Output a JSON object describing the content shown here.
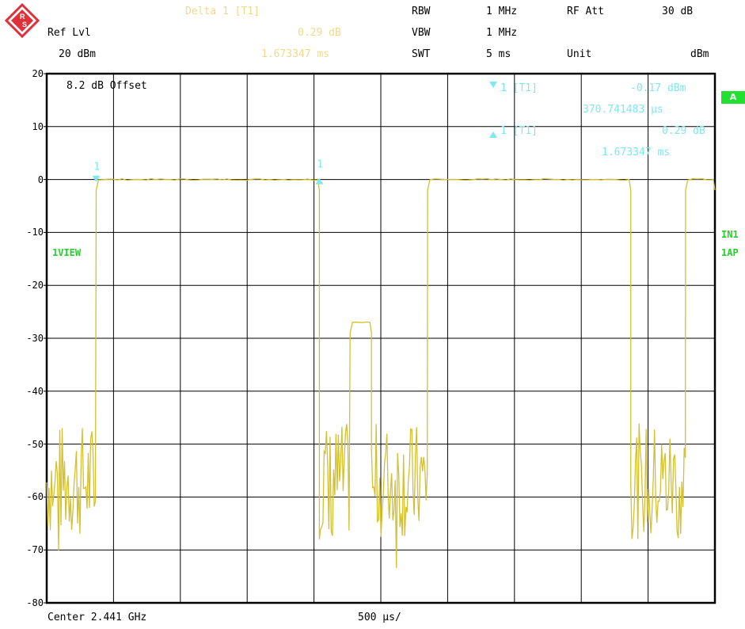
{
  "header": {
    "delta_label": "Delta 1 [T1]",
    "ref_lvl_label": "Ref Lvl",
    "ref_lvl_value": "20 dBm",
    "delta_level": "0.29 dB",
    "delta_time": "1.673347 ms",
    "rbw_label": "RBW",
    "rbw_value": "1 MHz",
    "vbw_label": "VBW",
    "vbw_value": "1 MHz",
    "swt_label": "SWT",
    "swt_value": "5 ms",
    "rfatt_label": "RF Att",
    "rfatt_value": "30 dB",
    "unit_label": "Unit",
    "unit_value": "dBm"
  },
  "markers": {
    "m1_label": "1 [T1]",
    "m1_level": "-0.17 dBm",
    "m1_time": "370.741483 μs",
    "d1_label": "1 [T1]",
    "d1_level": "0.29 dB",
    "d1_time": "1.673347 ms"
  },
  "offset_label": "8.2 dB Offset",
  "side": {
    "view": "1VIEW",
    "in1": "IN1",
    "ap": "1AP",
    "badge": "A"
  },
  "footer": {
    "center": "Center 2.441 GHz",
    "span": "500 μs/"
  },
  "colors": {
    "trace": "#d4c030",
    "marker": "#7fe8f0",
    "status_green": "#22e030"
  },
  "chart_data": {
    "type": "line",
    "ylabel": "",
    "xlabel": "",
    "ylim": [
      -80,
      20
    ],
    "yticks": [
      "20",
      "10",
      "0",
      "-10",
      "-20",
      "-30",
      "-40",
      "-50",
      "-60",
      "-70",
      "-80"
    ],
    "x_divisions": 10,
    "x_unit": "ms",
    "xlim": [
      0,
      5
    ],
    "grid": true,
    "segments": [
      {
        "start": 0.0,
        "end": 0.37,
        "level": -57,
        "kind": "noise"
      },
      {
        "start": 0.37,
        "end": 2.04,
        "level": 0,
        "kind": "burst"
      },
      {
        "start": 2.04,
        "end": 2.27,
        "level": -57,
        "kind": "noise"
      },
      {
        "start": 2.27,
        "end": 2.43,
        "level": -27,
        "kind": "step"
      },
      {
        "start": 2.43,
        "end": 2.85,
        "level": -57,
        "kind": "noise"
      },
      {
        "start": 2.85,
        "end": 4.37,
        "level": 0,
        "kind": "burst"
      },
      {
        "start": 4.37,
        "end": 4.78,
        "level": -57,
        "kind": "noise"
      },
      {
        "start": 4.78,
        "end": 5.0,
        "level": 0,
        "kind": "burst"
      }
    ],
    "markers": [
      {
        "label": "1",
        "x": 0.37,
        "y": -0.17,
        "symbol": "down"
      },
      {
        "label": "1",
        "x": 2.04,
        "y": 0.29,
        "symbol": "up"
      }
    ]
  }
}
